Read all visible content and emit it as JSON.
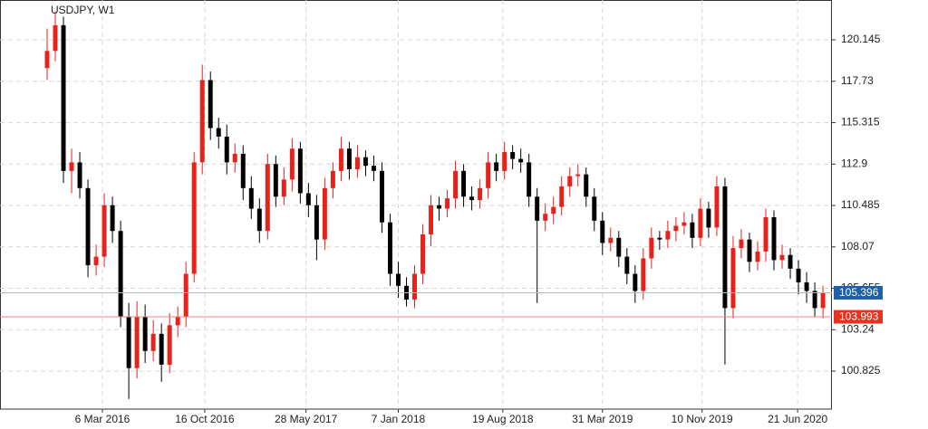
{
  "chart_data": {
    "type": "candlestick",
    "title": "USDJPY, W1",
    "up_color": "#e8211b",
    "down_color": "#000000",
    "grid": true,
    "ylim": [
      98.61,
      122.47
    ],
    "yticks": [
      100.825,
      103.24,
      105.655,
      108.07,
      110.485,
      112.9,
      115.315,
      117.73,
      120.145
    ],
    "xlim": [
      -5.77,
      96.1
    ],
    "xticks": [
      {
        "value": 6.77,
        "label": "6 Mar 2016"
      },
      {
        "value": 19.3,
        "label": "16 Oct 2016"
      },
      {
        "value": 31.7,
        "label": "28 May 2017"
      },
      {
        "value": 43.0,
        "label": "7 Jan 2018"
      },
      {
        "value": 55.8,
        "label": "19 Aug 2018"
      },
      {
        "value": 68.0,
        "label": "31 Mar 2019"
      },
      {
        "value": 80.2,
        "label": "10 Nov 2019"
      },
      {
        "value": 91.9,
        "label": "21 Jun 2020"
      }
    ],
    "open": [
      118.5,
      119.5,
      121,
      112.5,
      113,
      111.5,
      107,
      107.5,
      110.5,
      109,
      104,
      101,
      104,
      102,
      103,
      101.2,
      103.5,
      104,
      106.5,
      113,
      117.8,
      115,
      114.5,
      113,
      113.5,
      111.5,
      110.3,
      109,
      112.9,
      111,
      112,
      113.8,
      111.2,
      110.5,
      108.5,
      111.5,
      112.5,
      113.8,
      112.6,
      113.3,
      112.8,
      112.5,
      109.5,
      106.5,
      105.8,
      105,
      106.5,
      108.8,
      110.5,
      110.3,
      110.9,
      112.5,
      111,
      110.8,
      111.5,
      113,
      112.5,
      113.6,
      113.2,
      113,
      111,
      109.6,
      110,
      110.4,
      111.6,
      112.2,
      112.3,
      111,
      109.6,
      108.3,
      108.6,
      107.5,
      106.5,
      105.5,
      107.4,
      108.6,
      108.5,
      109,
      109.3,
      109.5,
      108.6,
      110.3,
      109.2,
      111.6,
      104.5,
      108,
      108.5,
      107.2,
      107.8,
      109.8,
      107.3,
      107.6,
      106.8,
      106,
      105.5,
      104.5
    ],
    "high": [
      120.8,
      121.8,
      121.5,
      113.8,
      113.6,
      112,
      108.2,
      111.2,
      111,
      109.6,
      104.8,
      104.9,
      104.7,
      103.8,
      103.6,
      104.2,
      104.6,
      107.2,
      113.6,
      118.7,
      118.3,
      115.6,
      115.2,
      114.1,
      114,
      112.2,
      110.9,
      113.5,
      113.4,
      112.7,
      114.4,
      114.2,
      111.8,
      111.1,
      112.1,
      113,
      114.5,
      114.2,
      114,
      113.7,
      113.4,
      113,
      110,
      107.2,
      106.3,
      107,
      109.4,
      111.1,
      111,
      111.4,
      113.1,
      112.9,
      111.6,
      112,
      113.6,
      113.5,
      114.2,
      114,
      113.8,
      113.5,
      111.5,
      110.6,
      111,
      112.2,
      112.7,
      112.9,
      112.7,
      111.5,
      110.1,
      109.2,
      109,
      108,
      107,
      108,
      109.2,
      109,
      109.6,
      109.8,
      110.1,
      110,
      110.9,
      110.7,
      112.2,
      112.1,
      108.7,
      109.1,
      108.9,
      108.4,
      110.3,
      110.2,
      108.2,
      108,
      107.3,
      106.6,
      106,
      105.8
    ],
    "low": [
      117.8,
      118.9,
      111.8,
      111.2,
      110.9,
      106.3,
      106.4,
      106.9,
      108.3,
      103.4,
      99.2,
      100.4,
      101.3,
      101.4,
      100.2,
      100.7,
      102.8,
      103.4,
      106,
      112.3,
      114.3,
      113.8,
      112.3,
      112.4,
      110.8,
      109.7,
      108.3,
      108.5,
      110.4,
      110.5,
      111.3,
      110.6,
      109.8,
      107.3,
      107.9,
      110.9,
      111.9,
      112,
      112.1,
      112.2,
      111.9,
      108.9,
      105.8,
      105.1,
      104.6,
      104.5,
      105.9,
      108.1,
      109.6,
      109.8,
      110.3,
      110.4,
      110.2,
      110.3,
      110.9,
      111.9,
      112,
      112.6,
      112.4,
      110.4,
      104.8,
      109,
      109.4,
      109.9,
      111,
      111.6,
      110.4,
      109,
      107.6,
      107.8,
      106.9,
      105.9,
      104.8,
      105,
      106.8,
      107.9,
      108,
      108.4,
      108.8,
      108,
      108.1,
      108.6,
      108.7,
      101.2,
      103.9,
      107.4,
      106.6,
      106.7,
      107.2,
      106.7,
      106.8,
      106.2,
      105.3,
      104.8,
      104,
      103.9
    ],
    "close": [
      119.5,
      121,
      112.5,
      113,
      111.5,
      107,
      107.5,
      110.5,
      109,
      104,
      101,
      104,
      102,
      103,
      101.2,
      103.5,
      104,
      106.5,
      113,
      117.8,
      115,
      114.5,
      113,
      113.5,
      111.5,
      110.3,
      109,
      112.9,
      111,
      112,
      113.8,
      111.2,
      110.5,
      108.5,
      111.5,
      112.5,
      113.8,
      112.6,
      113.3,
      112.8,
      112.5,
      109.5,
      106.5,
      105.8,
      105,
      106.5,
      108.8,
      110.5,
      110.3,
      110.9,
      112.5,
      111,
      110.8,
      111.5,
      113,
      112.5,
      113.6,
      113.2,
      113,
      111,
      109.6,
      110,
      110.4,
      111.6,
      112.2,
      112.3,
      111,
      109.6,
      108.3,
      108.6,
      107.5,
      106.5,
      105.5,
      107.4,
      108.6,
      108.5,
      109,
      109.3,
      109.5,
      108.6,
      110.3,
      109.2,
      111.6,
      104.5,
      108,
      108.5,
      107.2,
      107.8,
      109.8,
      107.3,
      107.6,
      106.8,
      106,
      105.5,
      104.5,
      105.4
    ],
    "price_lines": [
      {
        "value": 105.396,
        "color": "#1f5fa8",
        "line_color": "#bbbbbb"
      },
      {
        "value": 103.993,
        "color": "#e8311f",
        "line_color": "#f08a80"
      }
    ]
  }
}
